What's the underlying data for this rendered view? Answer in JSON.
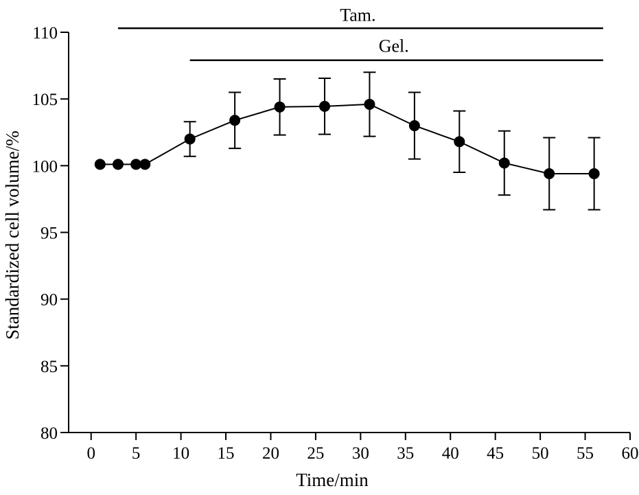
{
  "chart_data": {
    "type": "line",
    "title": "",
    "xlabel": "Time/min",
    "ylabel": "Standardized cell volume/%",
    "xlim": [
      -2.5,
      60
    ],
    "ylim": [
      80,
      110
    ],
    "x_ticks": [
      0,
      5,
      10,
      15,
      20,
      25,
      30,
      35,
      40,
      45,
      50,
      55,
      60
    ],
    "y_ticks": [
      80,
      85,
      90,
      95,
      100,
      105,
      110
    ],
    "grid": false,
    "series": [
      {
        "name": "Standardized cell volume",
        "color": "#000000",
        "marker": "filled-circle",
        "points": [
          {
            "x": 1,
            "y": 100.1
          },
          {
            "x": 3,
            "y": 100.1
          },
          {
            "x": 5,
            "y": 100.1
          },
          {
            "x": 6,
            "y": 100.1
          },
          {
            "x": 11,
            "y": 102.0,
            "err": 1.3
          },
          {
            "x": 16,
            "y": 103.4,
            "err": 2.1
          },
          {
            "x": 21,
            "y": 104.4,
            "err": 2.1
          },
          {
            "x": 26,
            "y": 104.45,
            "err": 2.1
          },
          {
            "x": 31,
            "y": 104.6,
            "err": 2.4
          },
          {
            "x": 36,
            "y": 103.0,
            "err": 2.5
          },
          {
            "x": 41,
            "y": 101.8,
            "err": 2.3
          },
          {
            "x": 46,
            "y": 100.2,
            "err": 2.4
          },
          {
            "x": 51,
            "y": 99.4,
            "err": 2.7
          },
          {
            "x": 56,
            "y": 99.4,
            "err": 2.7
          }
        ]
      }
    ],
    "annotations": [
      {
        "label": "Tam.",
        "x_start": 3,
        "x_end": 57,
        "y": 110.3,
        "label_y": 111.3
      },
      {
        "label": "Gel.",
        "x_start": 11,
        "x_end": 57,
        "y": 107.9,
        "label_y": 109.0
      }
    ]
  }
}
